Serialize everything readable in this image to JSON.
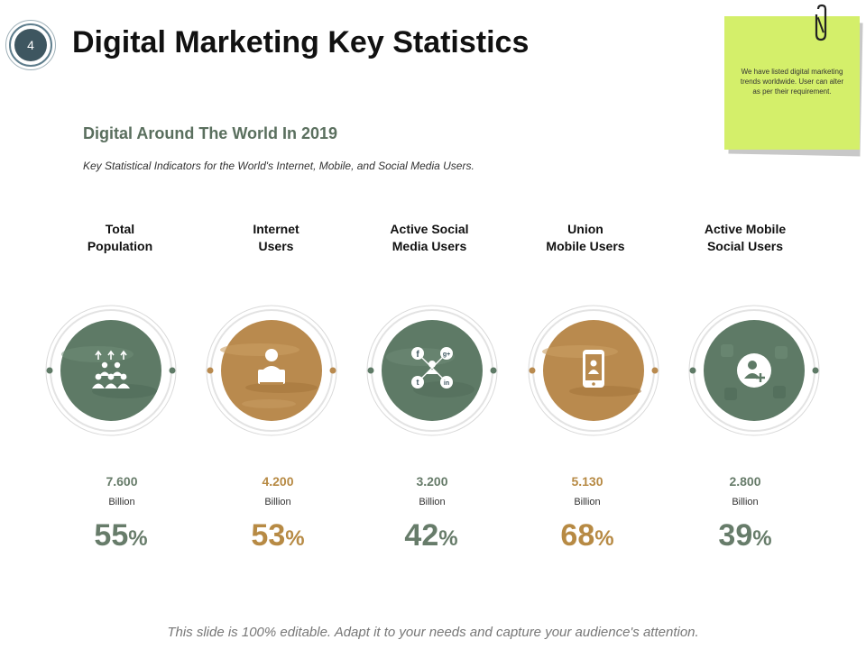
{
  "slide": {
    "number": "4",
    "title": "Digital Marketing Key Statistics"
  },
  "note": {
    "text": "We have listed digital marketing trends worldwide.  User can alter as per  their requirement."
  },
  "section": {
    "heading": "Digital Around The World In 2019",
    "description": "Key Statistical Indicators for the World's Internet, Mobile, and Social Media Users."
  },
  "colors": {
    "green": "#677c6a",
    "tan": "#b78a44",
    "green_fill": "#5e7a66",
    "tan_fill": "#b98a4e"
  },
  "stats": [
    {
      "label_line1": "Total",
      "label_line2": "Population",
      "icon": "population-growth-icon",
      "value": "7.600",
      "unit": "Billion",
      "percent": "55",
      "percent_sign": "%"
    },
    {
      "label_line1": "Internet",
      "label_line2": "Users",
      "icon": "computer-user-icon",
      "value": "4.200",
      "unit": "Billion",
      "percent": "53",
      "percent_sign": "%"
    },
    {
      "label_line1": "Active Social",
      "label_line2": "Media Users",
      "icon": "social-network-icon",
      "value": "3.200",
      "unit": "Billion",
      "percent": "42",
      "percent_sign": "%"
    },
    {
      "label_line1": "Union",
      "label_line2": "Mobile Users",
      "icon": "mobile-user-icon",
      "value": "5.130",
      "unit": "Billion",
      "percent": "68",
      "percent_sign": "%"
    },
    {
      "label_line1": "Active Mobile",
      "label_line2": "Social Users",
      "icon": "add-user-icon",
      "value": "2.800",
      "unit": "Billion",
      "percent": "39",
      "percent_sign": "%"
    }
  ],
  "social_glyphs": {
    "facebook": "f",
    "google": "g+",
    "twitter": "t",
    "linkedin": "in"
  },
  "footer": "This slide is 100% editable. Adapt it to your needs and capture your audience's attention."
}
